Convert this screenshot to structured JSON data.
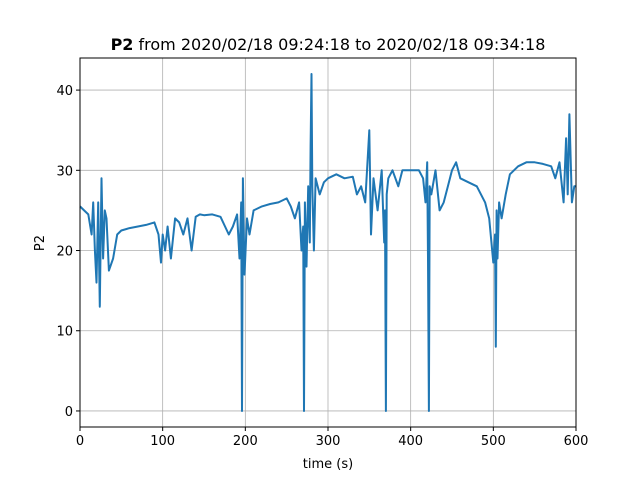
{
  "chart_data": {
    "type": "line",
    "title_bold": "P2",
    "title_rest": " from 2020/02/18 09:24:18 to 2020/02/18 09:34:18",
    "xlabel": "time (s)",
    "ylabel": "P2",
    "xlim": [
      0,
      600
    ],
    "ylim": [
      -2,
      44
    ],
    "xticks": [
      0,
      100,
      200,
      300,
      400,
      500,
      600
    ],
    "yticks": [
      0,
      10,
      20,
      30,
      40
    ],
    "grid": true,
    "series": [
      {
        "color": "#1f77b4",
        "x": [
          0,
          5,
          10,
          14,
          16,
          18,
          20,
          22,
          24,
          26,
          28,
          30,
          32,
          35,
          40,
          45,
          50,
          60,
          70,
          80,
          90,
          95,
          98,
          100,
          103,
          106,
          110,
          115,
          120,
          125,
          130,
          135,
          140,
          145,
          150,
          160,
          170,
          180,
          185,
          190,
          193,
          195,
          196,
          197,
          199,
          202,
          205,
          210,
          220,
          230,
          240,
          250,
          255,
          260,
          265,
          268,
          270,
          271,
          272,
          274,
          276,
          278,
          279,
          280,
          281,
          283,
          285,
          290,
          295,
          300,
          310,
          320,
          330,
          335,
          340,
          345,
          350,
          352,
          355,
          360,
          365,
          368,
          369,
          370,
          371,
          373,
          378,
          385,
          390,
          400,
          410,
          415,
          418,
          420,
          421,
          422,
          423,
          425,
          430,
          435,
          440,
          445,
          450,
          455,
          460,
          470,
          480,
          490,
          495,
          500,
          502,
          503,
          504,
          505,
          507,
          510,
          515,
          520,
          530,
          540,
          550,
          560,
          570,
          575,
          580,
          585,
          588,
          590,
          592,
          595,
          598,
          600
        ],
        "y": [
          25.5,
          25,
          24.5,
          22,
          26,
          20,
          16,
          26,
          13,
          29,
          19,
          25,
          24,
          17.5,
          19,
          22,
          22.5,
          22.8,
          23,
          23.2,
          23.5,
          22,
          18.5,
          22,
          20,
          23,
          19,
          24,
          23.5,
          22,
          24,
          20,
          24.2,
          24.5,
          24.4,
          24.5,
          24.2,
          22,
          23,
          24.5,
          19,
          26,
          0,
          29,
          17,
          24,
          22,
          25,
          25.5,
          25.8,
          26,
          26.5,
          25.5,
          24,
          26,
          20,
          23,
          0,
          26,
          18,
          28,
          21,
          33,
          42,
          28,
          20,
          29,
          27,
          28.5,
          29,
          29.5,
          29,
          29.2,
          27,
          28,
          26,
          35,
          22,
          29,
          25,
          30,
          21,
          25,
          0,
          27,
          29,
          30,
          28,
          30,
          30,
          30,
          29,
          26,
          31,
          19,
          0,
          28,
          27,
          30,
          25,
          26,
          28,
          30,
          31,
          29,
          28.5,
          28,
          26,
          24,
          18.5,
          22,
          8,
          25,
          19,
          26,
          24,
          27,
          29.5,
          30.5,
          31,
          31,
          30.8,
          30.5,
          29,
          31,
          26,
          34,
          27,
          37,
          26,
          28,
          28
        ]
      }
    ]
  }
}
